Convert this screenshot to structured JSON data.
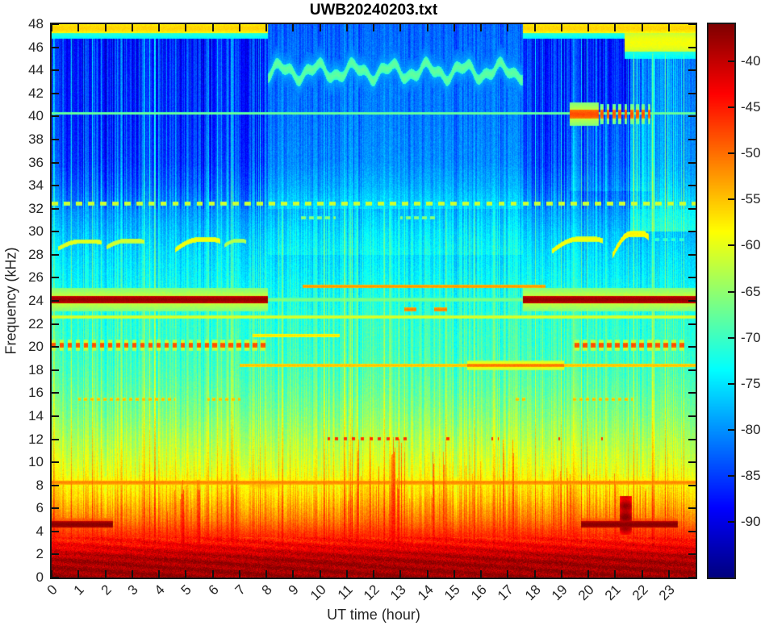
{
  "chart_data": {
    "type": "heatmap",
    "subtype": "vlf-spectrogram",
    "title": "UWB20240203.txt",
    "xlabel": "UT time (hour)",
    "ylabel": "Frequency (kHz)",
    "x_range": [
      0,
      24
    ],
    "y_range": [
      0,
      48
    ],
    "x_ticks": [
      0,
      1,
      2,
      3,
      4,
      5,
      6,
      7,
      8,
      9,
      10,
      11,
      12,
      13,
      14,
      15,
      16,
      17,
      18,
      19,
      20,
      21,
      22,
      23
    ],
    "y_ticks": [
      0,
      2,
      4,
      6,
      8,
      10,
      12,
      14,
      16,
      18,
      20,
      22,
      24,
      26,
      28,
      30,
      32,
      34,
      36,
      38,
      40,
      42,
      44,
      46,
      48
    ],
    "colorbar": {
      "colormap": "jet",
      "range": [
        -36,
        -96
      ],
      "ticks": [
        -40,
        -45,
        -50,
        -55,
        -60,
        -65,
        -70,
        -75,
        -80,
        -85,
        -90
      ]
    },
    "day_period_hours": [
      8.05,
      17.55
    ],
    "background_profile_khz_db": [
      [
        0,
        -37.5
      ],
      [
        1.5,
        -38.5
      ],
      [
        2,
        -40
      ],
      [
        3,
        -44
      ],
      [
        4,
        -47
      ],
      [
        5,
        -50.5
      ],
      [
        6,
        -53
      ],
      [
        7,
        -55.5
      ],
      [
        8,
        -57.5
      ],
      [
        9,
        -59
      ],
      [
        10,
        -60.5
      ],
      [
        12,
        -63
      ],
      [
        14,
        -65.5
      ],
      [
        16,
        -67.5
      ],
      [
        18,
        -69
      ],
      [
        20,
        -70
      ],
      [
        22,
        -70.5
      ],
      [
        24,
        -72
      ],
      [
        26,
        -73.5
      ],
      [
        28,
        -75
      ],
      [
        30,
        -77
      ],
      [
        32,
        -79.5
      ],
      [
        34,
        -82.5
      ],
      [
        36,
        -84.5
      ],
      [
        40,
        -85.5
      ],
      [
        44,
        -86
      ],
      [
        48,
        -87
      ]
    ],
    "regions": [
      {
        "t": [
          8.05,
          17.55
        ],
        "f": [
          32,
          48
        ],
        "add": 5.5
      },
      {
        "t": [
          8.05,
          17.55
        ],
        "f": [
          28,
          32
        ],
        "add": 2
      },
      {
        "t": [
          21.55,
          24
        ],
        "f": [
          30,
          45.5
        ],
        "add": 6.5
      },
      {
        "t": [
          19.3,
          22.4
        ],
        "f": [
          33.5,
          40.2
        ],
        "add": 2.5
      }
    ],
    "features": [
      {
        "type": "h",
        "f": 47.65,
        "half": 0.45,
        "db": -56,
        "spans": [
          [
            0,
            8.07
          ],
          [
            17.55,
            24
          ]
        ],
        "glow": [
          0.9,
          -68
        ]
      },
      {
        "type": "h",
        "f": 46.4,
        "half": 0.8,
        "db": -59,
        "spans": [
          [
            21.35,
            24
          ]
        ],
        "glow": [
          1.4,
          -68
        ]
      },
      {
        "type": "wave",
        "f": 43.9,
        "t0": 8.05,
        "t1": 17.55,
        "amp": 0.55,
        "half": 0.45,
        "db": -68,
        "glow_half": 1.5,
        "glow_db": -77
      },
      {
        "type": "h",
        "f": 40.25,
        "half": 0.12,
        "db": -67,
        "spans": [
          [
            0,
            24
          ]
        ]
      },
      {
        "type": "h",
        "f": 40.2,
        "half": 0.38,
        "db": -48,
        "spans": [
          [
            19.3,
            20.4
          ]
        ],
        "glow": [
          1.0,
          -60
        ]
      },
      {
        "type": "h",
        "f": 40.2,
        "half": 0.38,
        "db": -48.5,
        "spans": [
          [
            20.4,
            22.35
          ]
        ],
        "dash": [
          0.22,
          0.5
        ],
        "glow": [
          0.9,
          -62
        ]
      },
      {
        "type": "h",
        "f": 32.45,
        "half": 0.16,
        "db": -61,
        "spans": [
          [
            0,
            24
          ]
        ],
        "dash": [
          0.45,
          0.52
        ]
      },
      {
        "type": "h",
        "f": 31.2,
        "half": 0.13,
        "db": -65,
        "spans": [
          [
            9.3,
            10.6
          ],
          [
            13.0,
            14.35
          ]
        ],
        "dash": [
          0.3,
          0.6
        ]
      },
      {
        "type": "arc",
        "t0": 0.25,
        "t1": 1.85,
        "f0": 28.55,
        "f1": 29.15,
        "db": -60,
        "half": 0.2
      },
      {
        "type": "arc",
        "t0": 2.05,
        "t1": 3.45,
        "f0": 28.65,
        "f1": 29.2,
        "db": -61,
        "half": 0.2
      },
      {
        "type": "arc",
        "t0": 4.6,
        "t1": 6.3,
        "f0": 28.4,
        "f1": 29.3,
        "db": -59,
        "half": 0.22
      },
      {
        "type": "arc",
        "t0": 6.45,
        "t1": 7.25,
        "f0": 28.8,
        "f1": 29.2,
        "db": -63,
        "half": 0.18
      },
      {
        "type": "arc",
        "t0": 18.65,
        "t1": 20.55,
        "f0": 28.3,
        "f1": 29.35,
        "db": -59,
        "half": 0.22
      },
      {
        "type": "arc",
        "t0": 20.9,
        "t1": 22.25,
        "f0": 27.9,
        "f1": 29.8,
        "db": -58,
        "half": 0.26
      },
      {
        "type": "h",
        "f": 29.3,
        "half": 0.13,
        "db": -70,
        "spans": [
          [
            22.4,
            23.6
          ]
        ],
        "dash": [
          0.3,
          0.5
        ]
      },
      {
        "type": "h",
        "f": 25.25,
        "half": 0.15,
        "db": -52.5,
        "spans": [
          [
            9.35,
            18.4
          ]
        ]
      },
      {
        "type": "h",
        "f": 24.1,
        "half": 0.3,
        "db": -37.5,
        "spans": [
          [
            0,
            8.07
          ],
          [
            17.55,
            24
          ]
        ],
        "glow": [
          1.0,
          -60
        ]
      },
      {
        "type": "h",
        "f": 24.1,
        "half": 0.15,
        "db": -66,
        "spans": [
          [
            8.07,
            17.55
          ]
        ]
      },
      {
        "type": "h",
        "f": 23.25,
        "half": 0.17,
        "db": -51,
        "spans": [
          [
            13.15,
            13.6
          ],
          [
            14.25,
            14.75
          ]
        ]
      },
      {
        "type": "h",
        "f": 22.6,
        "half": 0.14,
        "db": -60.5,
        "spans": [
          [
            0,
            24
          ]
        ]
      },
      {
        "type": "h",
        "f": 21.0,
        "half": 0.14,
        "db": -57,
        "spans": [
          [
            7.5,
            10.75
          ]
        ]
      },
      {
        "type": "h",
        "f": 20.15,
        "half": 0.24,
        "db": -48,
        "spans": [
          [
            0,
            8.07
          ]
        ],
        "dash": [
          0.3,
          0.55
        ],
        "glow": [
          0.5,
          -58
        ]
      },
      {
        "type": "h",
        "f": 20.15,
        "half": 0.24,
        "db": -48,
        "spans": [
          [
            19.45,
            23.6
          ]
        ],
        "dash": [
          0.3,
          0.6
        ],
        "glow": [
          0.5,
          -58
        ]
      },
      {
        "type": "h",
        "f": 18.4,
        "half": 0.17,
        "db": -55,
        "spans": [
          [
            7.0,
            24
          ]
        ]
      },
      {
        "type": "h",
        "f": 18.4,
        "half": 0.15,
        "db": -50.5,
        "spans": [
          [
            15.5,
            19.1
          ]
        ],
        "glow": [
          0.45,
          -57
        ]
      },
      {
        "type": "h",
        "f": 15.45,
        "half": 0.14,
        "db": -54.5,
        "spans": [
          [
            1.0,
            4.6
          ],
          [
            5.8,
            7.05
          ],
          [
            17.2,
            17.75
          ],
          [
            19.4,
            21.65
          ]
        ],
        "dash": [
          0.24,
          0.5
        ]
      },
      {
        "type": "h",
        "f": 12.05,
        "half": 0.15,
        "db": -46,
        "spans": [
          [
            10.3,
            13.25
          ],
          [
            14.55,
            15.0
          ],
          [
            16.4,
            16.65
          ],
          [
            18.7,
            18.95
          ],
          [
            20.3,
            20.55
          ]
        ],
        "dash": [
          0.32,
          0.38
        ]
      },
      {
        "type": "h",
        "f": 8.25,
        "half": 0.18,
        "db": -51.5,
        "spans": [
          [
            0,
            24
          ]
        ],
        "glow": [
          0.55,
          -56
        ]
      },
      {
        "type": "h",
        "f": 4.6,
        "half": 0.27,
        "db": -36.5,
        "spans": [
          [
            0,
            2.28
          ],
          [
            19.72,
            23.33
          ]
        ],
        "glow": [
          0.6,
          -45
        ]
      }
    ],
    "patches": [
      {
        "t": [
          6.6,
          9.3
        ],
        "f": [
          7.1,
          9.0
        ],
        "db": -55,
        "soft": 4,
        "band": false
      },
      {
        "t": [
          21.17,
          21.62
        ],
        "f": [
          3.7,
          7.05
        ],
        "db": -37.5,
        "soft": 1.2,
        "band": true
      }
    ],
    "spike_clusters": [
      {
        "hours": [
          0.3,
          0.95
        ],
        "count": 2,
        "fmax": [
          4.5,
          5.5
        ],
        "db": -44
      },
      {
        "hours": [
          2.5,
          3.1
        ],
        "count": 3,
        "fmax": [
          4.5,
          6
        ],
        "db": -44
      },
      {
        "hours": [
          4.15,
          5.6
        ],
        "count": 13,
        "fmax": [
          5.5,
          8.5
        ],
        "db": -41
      },
      {
        "hours": [
          6.7,
          7.05
        ],
        "count": 3,
        "fmax": [
          6,
          9
        ],
        "db": -43
      },
      {
        "hours": [
          10.0,
          14.3
        ],
        "count": 30,
        "fmax": [
          5,
          12.5
        ],
        "db": -42
      },
      {
        "hours": [
          14.5,
          17.3
        ],
        "count": 12,
        "fmax": [
          5,
          12
        ],
        "db": -44
      },
      {
        "hours": [
          18.55,
          19.35
        ],
        "count": 6,
        "fmax": [
          6,
          10
        ],
        "db": -43
      },
      {
        "hours": [
          19.9,
          22.3
        ],
        "count": 6,
        "fmax": [
          7.5,
          9.5
        ],
        "db": -42
      }
    ],
    "streaks": {
      "strong_fraction": 0.06,
      "bright_fraction": 0.24,
      "max_db": 9
    },
    "accent_colors": {
      "axis": "#181818",
      "tick_text": "#262626",
      "title_text": "#000000"
    }
  }
}
